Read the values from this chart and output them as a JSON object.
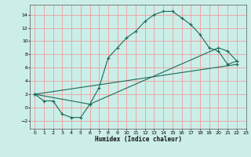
{
  "xlabel": "Humidex (Indice chaleur)",
  "bg_color": "#cceee8",
  "grid_color": "#e8a8a8",
  "line_color": "#1a6b5a",
  "xlim": [
    -0.5,
    23
  ],
  "ylim": [
    -3.2,
    15.5
  ],
  "xticks": [
    0,
    1,
    2,
    3,
    4,
    5,
    6,
    7,
    8,
    9,
    10,
    11,
    12,
    13,
    14,
    15,
    16,
    17,
    18,
    19,
    20,
    21,
    22,
    23
  ],
  "yticks": [
    -2,
    0,
    2,
    4,
    6,
    8,
    10,
    12,
    14
  ],
  "curve1_x": [
    0,
    1,
    2,
    3,
    4,
    5,
    6,
    7,
    8,
    9,
    10,
    11,
    12,
    13,
    14,
    15,
    16,
    17,
    18,
    19,
    20,
    21,
    22
  ],
  "curve1_y": [
    2,
    1,
    1,
    -1,
    -1.5,
    -1.5,
    0.5,
    3,
    7.5,
    9,
    10.5,
    11.5,
    13,
    14,
    14.5,
    14.5,
    13.5,
    12.5,
    11,
    9,
    8.5,
    6.5,
    7
  ],
  "curve2_x": [
    0,
    6,
    20,
    21,
    22
  ],
  "curve2_y": [
    2,
    0.5,
    9,
    8.5,
    7
  ],
  "curve3_x": [
    0,
    22
  ],
  "curve3_y": [
    2,
    6.5
  ]
}
